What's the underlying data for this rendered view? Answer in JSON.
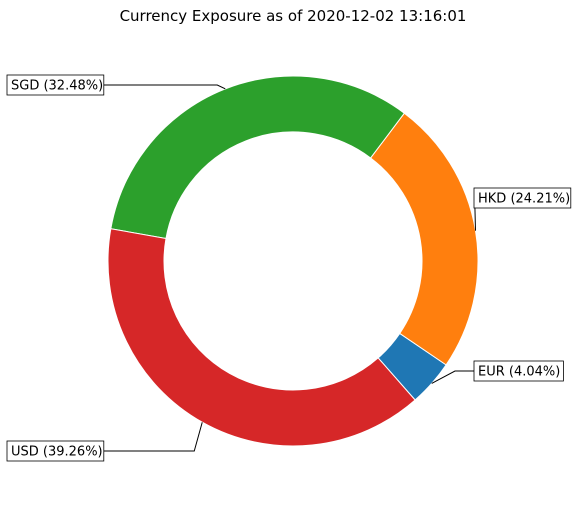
{
  "chart_data": {
    "type": "pie",
    "style": "donut",
    "title": "Currency Exposure as of 2020-12-02 13:16:01",
    "slices": [
      {
        "name": "EUR",
        "percent": 4.04,
        "label": "EUR (4.04%)",
        "color": "#1f77b4"
      },
      {
        "name": "HKD",
        "percent": 24.21,
        "label": "HKD (24.21%)",
        "color": "#ff7f0e"
      },
      {
        "name": "SGD",
        "percent": 32.48,
        "label": "SGD (32.48%)",
        "color": "#2ca02c"
      },
      {
        "name": "USD",
        "percent": 39.26,
        "label": "USD (39.26%)",
        "color": "#d62728"
      }
    ]
  }
}
